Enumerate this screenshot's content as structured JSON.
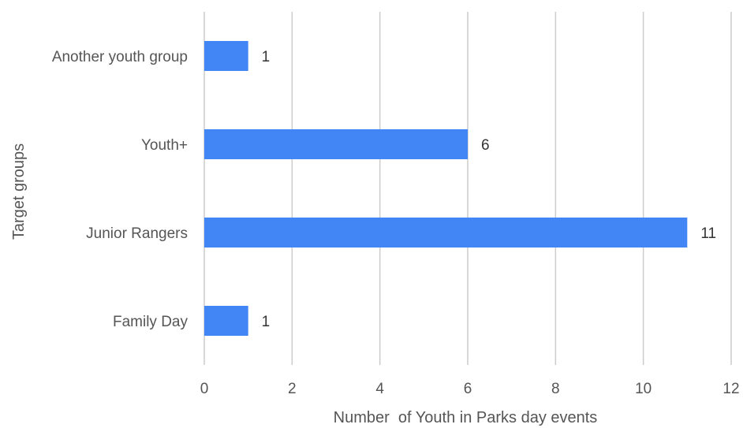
{
  "chart_data": {
    "type": "bar",
    "orientation": "horizontal",
    "categories": [
      "Another youth group",
      "Youth+",
      "Junior Rangers",
      "Family Day"
    ],
    "values": [
      1,
      6,
      11,
      1
    ],
    "data_labels": [
      "1",
      "6",
      "11",
      "1"
    ],
    "xlabel": "Number  of Youth in Parks day events",
    "ylabel": "Target groups",
    "xlim": [
      0,
      12
    ],
    "xticks": [
      "0",
      "2",
      "4",
      "6",
      "8",
      "10",
      "12"
    ],
    "grid": "vertical",
    "legend": "none",
    "colors": {
      "bar": "#4285f4"
    }
  }
}
